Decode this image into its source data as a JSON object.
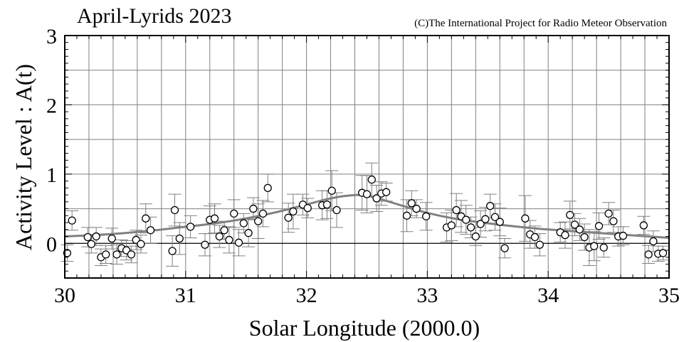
{
  "chart_data": {
    "type": "scatter",
    "title": "April-Lyrids 2023",
    "credit": "(C)The International Project for Radio Meteor Observation",
    "xlabel": "Solar Longitude (2000.0)",
    "ylabel": "Activity Level : A(t)",
    "xlim": [
      30,
      35
    ],
    "ylim": [
      -0.5,
      3
    ],
    "xticks": [
      30,
      31,
      32,
      33,
      34,
      35
    ],
    "yticks": [
      0,
      1,
      2,
      3
    ],
    "x_tick_labels": [
      "30",
      "31",
      "32",
      "33",
      "34",
      "35"
    ],
    "y_tick_labels": [
      "0",
      "1",
      "2",
      "3"
    ],
    "grid": true,
    "zero_line": true,
    "colors": {
      "points": "#000000",
      "fit_curve": "#808080",
      "error_bars": "#808080",
      "grid": "#808080"
    },
    "series": [
      {
        "type": "scatter",
        "x": [
          30.02,
          30.06,
          30.19,
          30.22,
          30.26,
          30.3,
          30.34,
          30.39,
          30.43,
          30.47,
          30.51,
          30.55,
          30.59,
          30.63,
          30.67,
          30.71,
          30.89,
          30.91,
          30.95,
          31.04,
          31.16,
          31.2,
          31.24,
          31.28,
          31.32,
          31.36,
          31.4,
          31.44,
          31.48,
          31.52,
          31.56,
          31.6,
          31.64,
          31.68,
          31.85,
          31.89,
          31.97,
          32.01,
          32.13,
          32.17,
          32.21,
          32.25,
          32.46,
          32.5,
          32.54,
          32.58,
          32.62,
          32.66,
          32.83,
          32.87,
          32.91,
          32.99,
          33.16,
          33.2,
          33.24,
          33.28,
          33.32,
          33.36,
          33.4,
          33.44,
          33.48,
          33.52,
          33.56,
          33.6,
          33.64,
          33.81,
          33.85,
          33.89,
          33.93,
          34.1,
          34.14,
          34.18,
          34.22,
          34.26,
          34.3,
          34.34,
          34.38,
          34.42,
          34.46,
          34.5,
          34.54,
          34.58,
          34.62,
          34.79,
          34.83,
          34.87,
          34.91,
          34.95
        ],
        "y": [
          -0.14,
          0.33,
          0.09,
          -0.01,
          0.1,
          -0.2,
          -0.16,
          0.07,
          -0.16,
          -0.07,
          -0.1,
          -0.16,
          0.05,
          -0.01,
          0.36,
          0.19,
          -0.11,
          0.48,
          0.07,
          0.24,
          -0.02,
          0.34,
          0.36,
          0.1,
          0.19,
          0.05,
          0.43,
          0.01,
          0.29,
          0.15,
          0.5,
          0.32,
          0.43,
          0.8,
          0.37,
          0.46,
          0.56,
          0.51,
          0.55,
          0.56,
          0.76,
          0.48,
          0.73,
          0.71,
          0.92,
          0.65,
          0.72,
          0.74,
          0.4,
          0.58,
          0.5,
          0.39,
          0.23,
          0.26,
          0.48,
          0.39,
          0.34,
          0.23,
          0.1,
          0.28,
          0.35,
          0.54,
          0.38,
          0.31,
          -0.07,
          0.36,
          0.13,
          0.09,
          -0.02,
          0.16,
          0.12,
          0.41,
          0.27,
          0.2,
          0.09,
          -0.06,
          -0.04,
          0.25,
          -0.06,
          0.43,
          0.32,
          0.1,
          0.11,
          0.26,
          -0.16,
          0.03,
          -0.15,
          -0.14
        ],
        "err": [
          0.12,
          0.14,
          0.14,
          0.13,
          0.13,
          0.12,
          0.13,
          0.15,
          0.14,
          0.12,
          0.14,
          0.12,
          0.14,
          0.13,
          0.21,
          0.19,
          0.22,
          0.23,
          0.23,
          0.16,
          0.16,
          0.2,
          0.21,
          0.16,
          0.13,
          0.19,
          0.2,
          0.19,
          0.14,
          0.2,
          0.16,
          0.25,
          0.19,
          0.2,
          0.21,
          0.25,
          0.15,
          0.14,
          0.21,
          0.2,
          0.29,
          0.25,
          0.25,
          0.27,
          0.24,
          0.19,
          0.17,
          0.13,
          0.23,
          0.18,
          0.13,
          0.2,
          0.21,
          0.22,
          0.24,
          0.23,
          0.21,
          0.15,
          0.13,
          0.19,
          0.17,
          0.17,
          0.19,
          0.2,
          0.14,
          0.33,
          0.2,
          0.16,
          0.16,
          0.14,
          0.19,
          0.2,
          0.16,
          0.16,
          0.19,
          0.26,
          0.21,
          0.19,
          0.14,
          0.16,
          0.16,
          0.14,
          0.13,
          0.13,
          0.13,
          0.15,
          0.11,
          0.1
        ]
      },
      {
        "type": "line",
        "x": [
          30.0,
          30.25,
          30.5,
          30.75,
          31.0,
          31.25,
          31.5,
          31.75,
          32.0,
          32.15,
          32.3,
          32.45,
          32.55,
          32.65,
          32.8,
          33.0,
          33.25,
          33.5,
          33.75,
          34.0,
          34.25,
          34.5,
          34.75,
          35.0
        ],
        "y": [
          0.1,
          0.12,
          0.15,
          0.19,
          0.24,
          0.29,
          0.36,
          0.45,
          0.56,
          0.63,
          0.68,
          0.7,
          0.67,
          0.62,
          0.54,
          0.44,
          0.35,
          0.29,
          0.24,
          0.2,
          0.17,
          0.14,
          0.11,
          0.08
        ]
      }
    ]
  }
}
